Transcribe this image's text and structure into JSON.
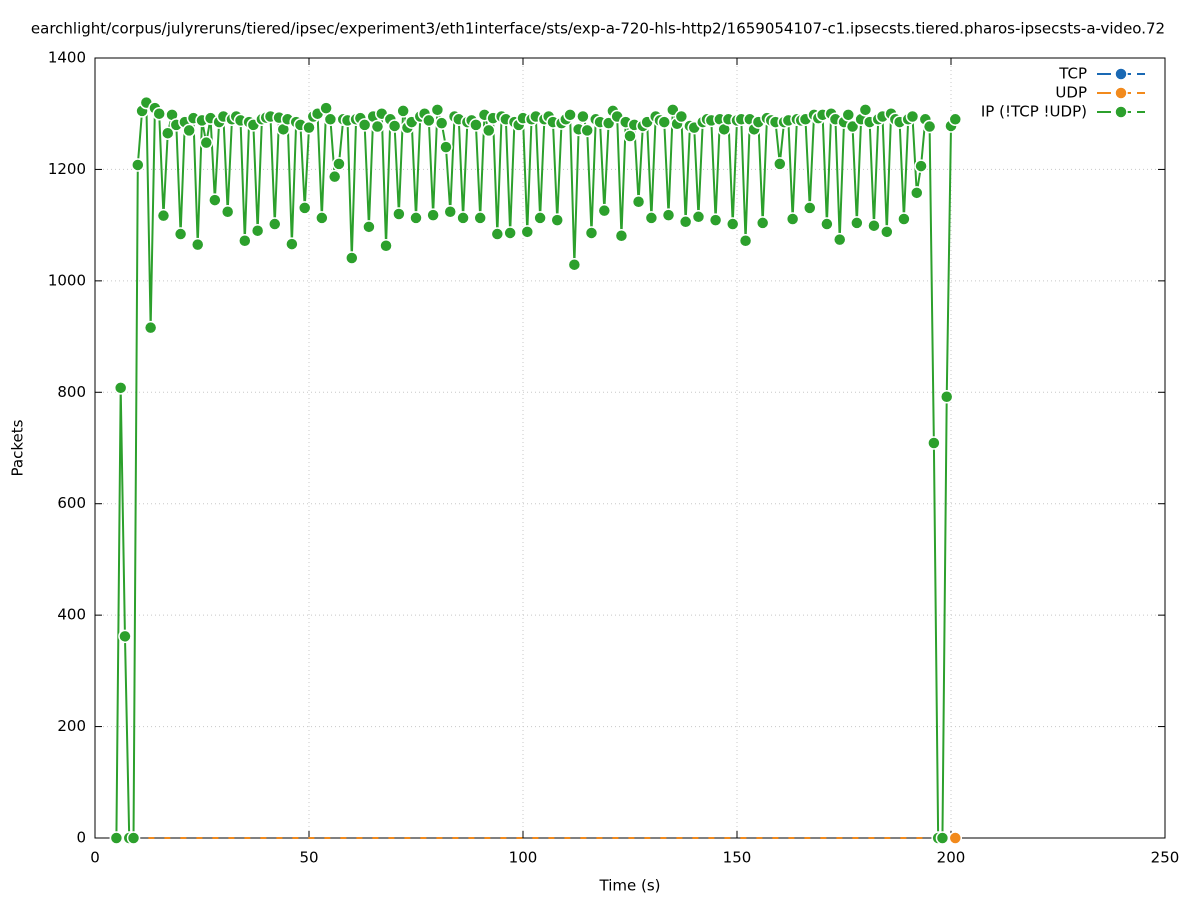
{
  "chart_data": {
    "type": "line",
    "title": "earchlight/corpus/julyreruns/tiered/ipsec/experiment3/eth1interface/sts/exp-a-720-hls-http2/1659054107-c1.ipsecsts.tiered.pharos-ipsecsts-a-video.72",
    "xlabel": "Time (s)",
    "ylabel": "Packets",
    "xlim": [
      0,
      250
    ],
    "xticks": [
      0,
      50,
      100,
      150,
      200,
      250
    ],
    "ylim": [
      0,
      1400
    ],
    "yticks": [
      0,
      200,
      400,
      600,
      800,
      1000,
      1200,
      1400
    ],
    "grid": true,
    "legend": "top-right",
    "series": [
      {
        "name": "TCP",
        "color": "#1a69b4",
        "x": [],
        "values": []
      },
      {
        "name": "UDP",
        "color": "#f28a1c",
        "x": [
          5,
          201
        ],
        "values": [
          0,
          0
        ]
      },
      {
        "name": "IP (!TCP  !UDP)",
        "color": "#2ca02c",
        "x": [
          5,
          6,
          7,
          8,
          9,
          10,
          11,
          12,
          13,
          14,
          15,
          16,
          17,
          18,
          19,
          20,
          21,
          22,
          23,
          24,
          25,
          26,
          27,
          28,
          29,
          30,
          31,
          32,
          33,
          34,
          35,
          36,
          37,
          38,
          39,
          40,
          41,
          42,
          43,
          44,
          45,
          46,
          47,
          48,
          49,
          50,
          51,
          52,
          53,
          54,
          55,
          56,
          57,
          58,
          59,
          60,
          61,
          62,
          63,
          64,
          65,
          66,
          67,
          68,
          69,
          70,
          71,
          72,
          73,
          74,
          75,
          76,
          77,
          78,
          79,
          80,
          81,
          82,
          83,
          84,
          85,
          86,
          87,
          88,
          89,
          90,
          91,
          92,
          93,
          94,
          95,
          96,
          97,
          98,
          99,
          100,
          101,
          102,
          103,
          104,
          105,
          106,
          107,
          108,
          109,
          110,
          111,
          112,
          113,
          114,
          115,
          116,
          117,
          118,
          119,
          120,
          121,
          122,
          123,
          124,
          125,
          126,
          127,
          128,
          129,
          130,
          131,
          132,
          133,
          134,
          135,
          136,
          137,
          138,
          139,
          140,
          141,
          142,
          143,
          144,
          145,
          146,
          147,
          148,
          149,
          150,
          151,
          152,
          153,
          154,
          155,
          156,
          157,
          158,
          159,
          160,
          161,
          162,
          163,
          164,
          165,
          166,
          167,
          168,
          169,
          170,
          171,
          172,
          173,
          174,
          175,
          176,
          177,
          178,
          179,
          180,
          181,
          182,
          183,
          184,
          185,
          186,
          187,
          188,
          189,
          190,
          191,
          192,
          193,
          194,
          195,
          196,
          197,
          198,
          199,
          200,
          201
        ],
        "values": [
          0,
          808,
          362,
          0,
          0,
          1208,
          1305,
          1320,
          916,
          1310,
          1300,
          1117,
          1265,
          1298,
          1280,
          1084,
          1285,
          1270,
          1292,
          1065,
          1288,
          1248,
          1292,
          1145,
          1285,
          1295,
          1124,
          1290,
          1295,
          1288,
          1072,
          1285,
          1280,
          1090,
          1290,
          1293,
          1295,
          1102,
          1293,
          1272,
          1290,
          1066,
          1285,
          1280,
          1131,
          1275,
          1295,
          1300,
          1113,
          1310,
          1290,
          1187,
          1210,
          1290,
          1288,
          1041,
          1290,
          1292,
          1280,
          1097,
          1295,
          1277,
          1300,
          1063,
          1290,
          1278,
          1120,
          1305,
          1275,
          1285,
          1113,
          1295,
          1300,
          1288,
          1118,
          1307,
          1283,
          1240,
          1124,
          1295,
          1290,
          1113,
          1285,
          1288,
          1280,
          1113,
          1298,
          1270,
          1292,
          1084,
          1295,
          1290,
          1086,
          1285,
          1280,
          1292,
          1088,
          1290,
          1295,
          1113,
          1290,
          1295,
          1285,
          1109,
          1283,
          1290,
          1298,
          1029,
          1272,
          1295,
          1270,
          1086,
          1290,
          1285,
          1126,
          1283,
          1305,
          1295,
          1081,
          1285,
          1260,
          1280,
          1142,
          1278,
          1285,
          1113,
          1295,
          1288,
          1285,
          1118,
          1307,
          1282,
          1295,
          1106,
          1278,
          1275,
          1115,
          1285,
          1290,
          1288,
          1109,
          1290,
          1272,
          1290,
          1102,
          1288,
          1290,
          1072,
          1290,
          1272,
          1285,
          1104,
          1292,
          1288,
          1285,
          1210,
          1285,
          1288,
          1111,
          1290,
          1288,
          1290,
          1131,
          1298,
          1292,
          1298,
          1102,
          1300,
          1290,
          1074,
          1285,
          1298,
          1277,
          1104,
          1290,
          1307,
          1285,
          1099,
          1290,
          1295,
          1088,
          1300,
          1290,
          1285,
          1111,
          1290,
          1295,
          1158,
          1206,
          1290,
          1277,
          709,
          0,
          0,
          792,
          1278,
          1290
        ]
      }
    ]
  }
}
